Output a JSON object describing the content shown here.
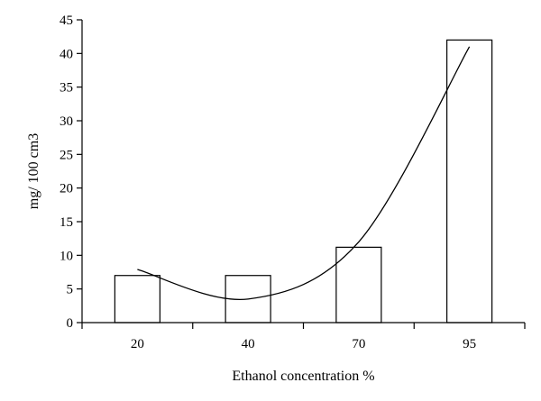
{
  "chart_data": {
    "type": "bar",
    "categories": [
      "20",
      "40",
      "70",
      "95"
    ],
    "values": [
      7,
      7,
      11.2,
      42
    ],
    "trendline": {
      "type": "polynomial",
      "values": [
        7.9,
        3.5,
        12.0,
        41.0
      ]
    },
    "title": "",
    "xlabel": "Ethanol concentration %",
    "ylabel": "mg/ 100 cm3",
    "ylim": [
      0,
      45
    ],
    "yticks": [
      0,
      5,
      10,
      15,
      20,
      25,
      30,
      35,
      40,
      45
    ],
    "grid": false,
    "legend": "none",
    "colors": {
      "bar_fill": "#ffffff",
      "bar_stroke": "#000000",
      "line": "#000000"
    }
  }
}
